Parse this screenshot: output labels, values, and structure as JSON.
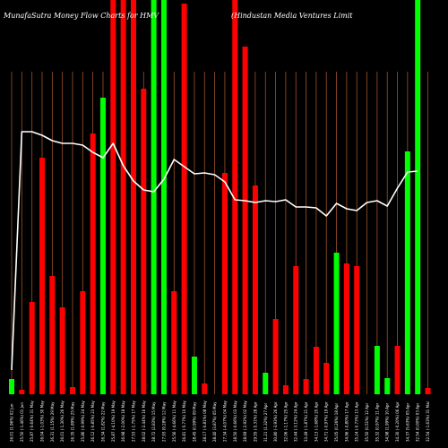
{
  "chart_data": {
    "type": "bar",
    "title_left": "MunafaSutra  Money Flow  Charts for HMV",
    "title_right": "(Hindustan  Media  Ventures Limit",
    "background": "#000000",
    "colors": {
      "up": "#00ff00",
      "down": "#ff0000",
      "line": "#ffffff",
      "grid": "#a0522d"
    },
    "ylim": [
      0,
      440
    ],
    "line_ylim": [
      0,
      440
    ],
    "bars": [
      {
        "label": "26.01 (1.96%) 02 Jun",
        "value": 17,
        "direction": "up"
      },
      {
        "label": "25.50 (-1.46%) 01 Jun",
        "value": 5,
        "direction": "down"
      },
      {
        "label": "25.87 (-0.64%) 31 May",
        "value": 103,
        "direction": "down"
      },
      {
        "label": "26.04 (-1.03%) 30 May",
        "value": 264,
        "direction": "down"
      },
      {
        "label": "26.31 (1.15%) 29 May",
        "value": 132,
        "direction": "down"
      },
      {
        "label": "26.01 (-1.30%) 26 May",
        "value": 97,
        "direction": "down"
      },
      {
        "label": "26.35 (1.89%) 25 May",
        "value": 8,
        "direction": "down"
      },
      {
        "label": "25.86 (-0.99%) 24 May",
        "value": 115,
        "direction": "down"
      },
      {
        "label": "26.12 (-0.85%) 23 May",
        "value": 291,
        "direction": "down"
      },
      {
        "label": "26.34 (1.82%) 22 May",
        "value": 331,
        "direction": "up"
      },
      {
        "label": "25.87 (-4.10%) 19 May",
        "value": 440,
        "direction": "down"
      },
      {
        "label": "26.98 (-2.00%) 18 May",
        "value": 440,
        "direction": "down"
      },
      {
        "label": "27.53 (-1.75%) 17 May",
        "value": 440,
        "direction": "down"
      },
      {
        "label": "28.02 (-2.44%) 16 May",
        "value": 341,
        "direction": "down"
      },
      {
        "label": "28.72 (2.83%) 15 May",
        "value": 440,
        "direction": "up"
      },
      {
        "label": "27.93 (9.28%) 12 May",
        "value": 440,
        "direction": "up"
      },
      {
        "label": "25.56 (-4.66%) 11 May",
        "value": 115,
        "direction": "down"
      },
      {
        "label": "26.81 (-5.77%) 10 May",
        "value": 436,
        "direction": "down"
      },
      {
        "label": "28.45 (0.99%) 09 May",
        "value": 42,
        "direction": "up"
      },
      {
        "label": "28.17 (-0.81%) 08 May",
        "value": 12,
        "direction": "down"
      },
      {
        "label": "28.40 (3.87%) 05 May",
        "value": 0,
        "direction": "up"
      },
      {
        "label": "27.34 (-4.07%) 04 May",
        "value": 247,
        "direction": "down"
      },
      {
        "label": "28.50 (-0.66%) 03 May",
        "value": 440,
        "direction": "down"
      },
      {
        "label": "28.69 (-2.92%) 02 May",
        "value": 388,
        "direction": "down"
      },
      {
        "label": "29.55 (-5.31%) 28 Apr",
        "value": 233,
        "direction": "down"
      },
      {
        "label": "31.21 (1.32%) 27 Apr",
        "value": 24,
        "direction": "up"
      },
      {
        "label": "30.80 (-3.93%) 26 Apr",
        "value": 84,
        "direction": "down"
      },
      {
        "label": "32.06 (-1.17%) 25 Apr",
        "value": 10,
        "direction": "down"
      },
      {
        "label": "32.44 (-3.12%) 24 Apr",
        "value": 143,
        "direction": "down"
      },
      {
        "label": "33.49 (-1.87%) 21 Apr",
        "value": 17,
        "direction": "down"
      },
      {
        "label": "34.13 (-1.68%) 20 Apr",
        "value": 53,
        "direction": "down"
      },
      {
        "label": "34.71 (-0.97%) 19 Apr",
        "value": 35,
        "direction": "down"
      },
      {
        "label": "35.05 (0.26%) 18 Apr",
        "value": 158,
        "direction": "up"
      },
      {
        "label": "34.96 (-0.80%) 17 Apr",
        "value": 146,
        "direction": "down"
      },
      {
        "label": "35.24 (-0.73%) 13 Apr",
        "value": 143,
        "direction": "down"
      },
      {
        "label": "35.50 (0.51%) 12 Apr",
        "value": 0,
        "direction": "up"
      },
      {
        "label": "35.32 (0.97%) 11 Apr",
        "value": 54,
        "direction": "up"
      },
      {
        "label": "34.98 (1.99%) 10 Apr",
        "value": 18,
        "direction": "up"
      },
      {
        "label": "34.30 (-0.20%) 06 Apr",
        "value": 54,
        "direction": "down"
      },
      {
        "label": "34.37 (5.63%) 05 Apr",
        "value": 271,
        "direction": "up"
      },
      {
        "label": "32.54 (0.00%) 03 Apr",
        "value": 440,
        "direction": "up"
      },
      {
        "label": "32.54 (-1.63%) 31 Mar",
        "value": 7,
        "direction": "down"
      }
    ],
    "line_values": [
      27,
      293,
      293,
      289,
      283,
      280,
      280,
      278,
      270,
      264,
      280,
      255,
      238,
      228,
      226,
      240,
      262,
      254,
      246,
      247,
      245,
      237,
      217,
      216,
      214,
      216,
      215,
      217,
      209,
      209,
      208,
      199,
      213,
      207,
      205,
      214,
      216,
      210,
      230,
      248,
      249
    ]
  }
}
